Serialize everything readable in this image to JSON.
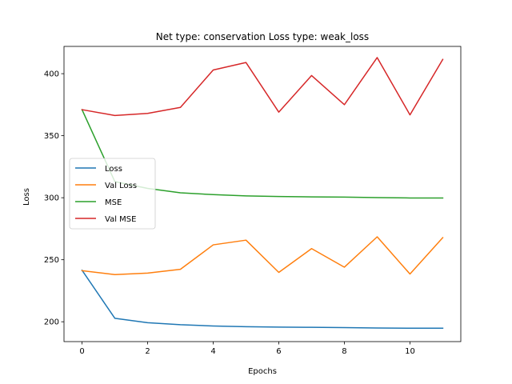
{
  "chart_data": {
    "type": "line",
    "title": "Net type: conservation Loss type: weak_loss",
    "xlabel": "Epochs",
    "ylabel": "Loss",
    "xlim": [
      -0.55,
      11.55
    ],
    "ylim": [
      184,
      422
    ],
    "x": [
      0,
      1,
      2,
      3,
      4,
      5,
      6,
      7,
      8,
      9,
      10,
      11
    ],
    "xticks": [
      0,
      2,
      4,
      6,
      8,
      10
    ],
    "yticks": [
      200,
      250,
      300,
      350,
      400
    ],
    "grid": false,
    "legend_position": "center-left",
    "series": [
      {
        "name": "Loss",
        "color": "#1f77b4",
        "values": [
          241.5,
          202.8,
          199.2,
          197.6,
          196.6,
          196.0,
          195.7,
          195.5,
          195.3,
          195.0,
          194.8,
          194.8
        ]
      },
      {
        "name": "Val Loss",
        "color": "#ff7f0e",
        "values": [
          241.2,
          238.0,
          239.2,
          242.3,
          262.0,
          265.8,
          239.8,
          259.0,
          244.0,
          268.5,
          238.5,
          267.8
        ]
      },
      {
        "name": "MSE",
        "color": "#2ca02c",
        "values": [
          371.0,
          313.0,
          307.5,
          304.0,
          302.5,
          301.5,
          301.0,
          300.7,
          300.5,
          300.1,
          299.8,
          299.8
        ]
      },
      {
        "name": "Val MSE",
        "color": "#d62728",
        "values": [
          371.0,
          366.3,
          368.0,
          372.8,
          403.0,
          409.0,
          369.0,
          398.5,
          375.0,
          413.0,
          366.8,
          411.5
        ]
      }
    ]
  }
}
